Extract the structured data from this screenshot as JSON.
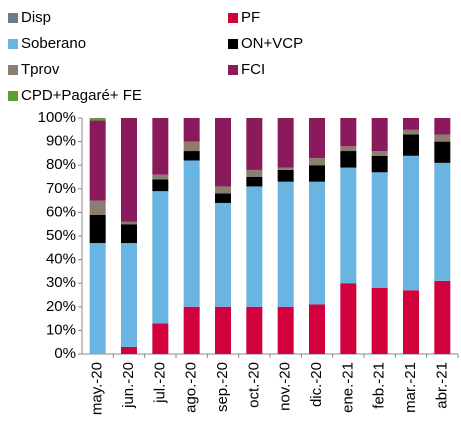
{
  "chart_data": {
    "type": "stacked_bar",
    "categories": [
      "may.-20",
      "jun.-20",
      "jul.-20",
      "ago.-20",
      "sep.-20",
      "oct.-20",
      "nov.-20",
      "dic.-20",
      "ene.-21",
      "feb.-21",
      "mar.-21",
      "abr.-21"
    ],
    "series": [
      {
        "name": "Disp",
        "color": "#6d7b8d",
        "values": [
          0,
          0,
          0,
          0,
          0,
          0,
          0,
          0,
          0,
          0,
          0,
          0
        ]
      },
      {
        "name": "PF",
        "color": "#d2003c",
        "values": [
          0,
          3,
          13,
          20,
          20,
          20,
          20,
          21,
          30,
          28,
          27,
          31
        ]
      },
      {
        "name": "Soberano",
        "color": "#6ab4e2",
        "values": [
          47,
          44,
          56,
          62,
          44,
          51,
          53,
          52,
          49,
          49,
          57,
          50
        ]
      },
      {
        "name": "ON+VCP",
        "color": "#000000",
        "values": [
          12,
          8,
          5,
          4,
          4,
          4,
          5,
          7,
          7,
          7,
          9,
          9
        ]
      },
      {
        "name": "Tprov",
        "color": "#8c7e6e",
        "values": [
          6,
          1,
          2,
          4,
          3,
          3,
          1,
          3,
          2,
          2,
          2,
          3
        ]
      },
      {
        "name": "FCI",
        "color": "#8a1a5c",
        "values": [
          34,
          44,
          24,
          10,
          29,
          22,
          21,
          17,
          12,
          14,
          5,
          7
        ]
      },
      {
        "name": "CPD+Pagaré+ FE",
        "color": "#5c9e31",
        "values": [
          1,
          0,
          0,
          0,
          0,
          0,
          0,
          0,
          0,
          0,
          0,
          0
        ]
      }
    ],
    "ylim": [
      0,
      100
    ],
    "yticks": [
      {
        "value": 0,
        "label": "0%"
      },
      {
        "value": 10,
        "label": "10%"
      },
      {
        "value": 20,
        "label": "20%"
      },
      {
        "value": 30,
        "label": "30%"
      },
      {
        "value": 40,
        "label": "40%"
      },
      {
        "value": 50,
        "label": "50%"
      },
      {
        "value": 60,
        "label": "60%"
      },
      {
        "value": 70,
        "label": "70%"
      },
      {
        "value": 80,
        "label": "80%"
      },
      {
        "value": 90,
        "label": "90%"
      },
      {
        "value": 100,
        "label": "100%"
      }
    ],
    "legend": "top"
  }
}
